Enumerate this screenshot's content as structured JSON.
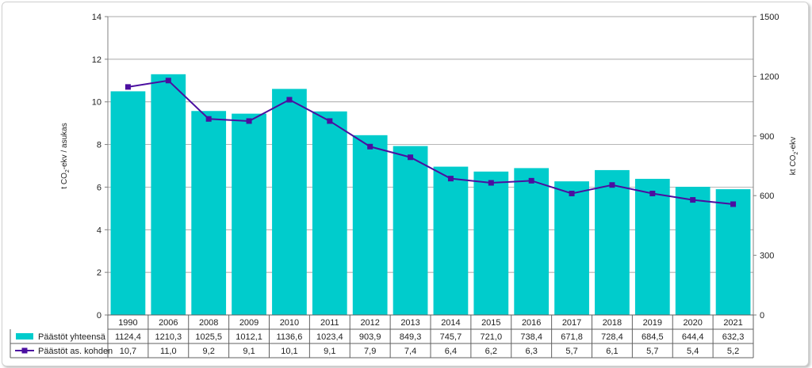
{
  "chart_data": {
    "type": "bar",
    "categories": [
      "1990",
      "2006",
      "2008",
      "2009",
      "2010",
      "2011",
      "2012",
      "2013",
      "2014",
      "2015",
      "2016",
      "2017",
      "2018",
      "2019",
      "2020",
      "2021"
    ],
    "series": [
      {
        "name": "Päästöt yhteensä",
        "chart_type": "bar",
        "axis": "right",
        "color": "#00cccc",
        "values": [
          1124.4,
          1210.3,
          1025.5,
          1012.1,
          1136.6,
          1023.4,
          903.9,
          849.3,
          745.7,
          721.0,
          738.4,
          671.8,
          728.4,
          684.5,
          644.4,
          632.3
        ],
        "labels": [
          "1124,4",
          "1210,3",
          "1025,5",
          "1012,1",
          "1136,6",
          "1023,4",
          "903,9",
          "849,3",
          "745,7",
          "721,0",
          "738,4",
          "671,8",
          "728,4",
          "684,5",
          "644,4",
          "632,3"
        ]
      },
      {
        "name": "Päästöt as. kohden",
        "chart_type": "line",
        "axis": "left",
        "color": "#4b0fa0",
        "marker": "square",
        "values": [
          10.7,
          11.0,
          9.2,
          9.1,
          10.1,
          9.1,
          7.9,
          7.4,
          6.4,
          6.2,
          6.3,
          5.7,
          6.1,
          5.7,
          5.4,
          5.2
        ],
        "labels": [
          "10,7",
          "11,0",
          "9,2",
          "9,1",
          "10,1",
          "9,1",
          "7,9",
          "7,4",
          "6,4",
          "6,2",
          "6,3",
          "5,7",
          "6,1",
          "5,7",
          "5,4",
          "5,2"
        ]
      }
    ],
    "ylabel_left": {
      "main": "t CO",
      "sub": "2",
      "rest": "-ekv / asukas"
    },
    "ylabel_right": {
      "main": "kt CO",
      "sub": "2",
      "rest": "-ekv"
    },
    "ylim_left": [
      0,
      14
    ],
    "yticks_left": [
      "0",
      "2",
      "4",
      "6",
      "8",
      "10",
      "12",
      "14"
    ],
    "ylim_right": [
      0,
      1500
    ],
    "yticks_right": [
      "0",
      "300",
      "600",
      "900",
      "1200",
      "1500"
    ],
    "data_table": true,
    "legend_placement": "data-table"
  }
}
